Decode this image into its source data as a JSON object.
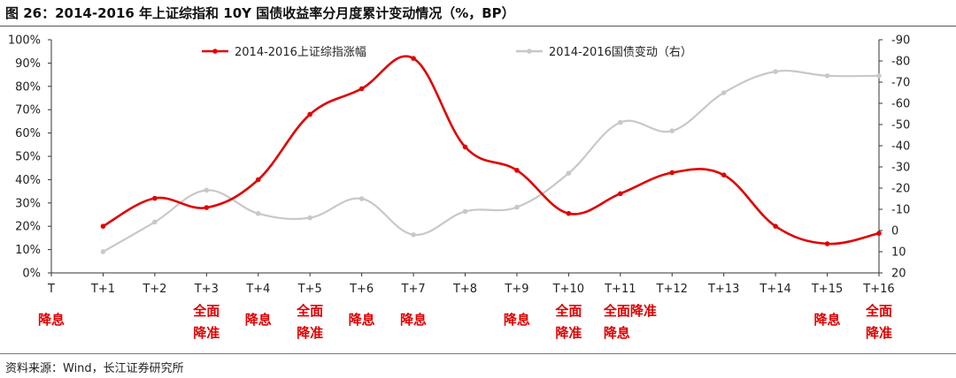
{
  "title": "图 26：2014-2016 年上证综指和 10Y 国债收益率分月度累计变动情况（%，BP）",
  "source": "资料来源：Wind，长江证券研究所",
  "chart_data": {
    "type": "line",
    "title": "图 26：2014-2016 年上证综指和 10Y 国债收益率分月度累计变动情况（%，BP）",
    "categories": [
      "T",
      "T+1",
      "T+2",
      "T+3",
      "T+4",
      "T+5",
      "T+6",
      "T+7",
      "T+8",
      "T+9",
      "T+10",
      "T+11",
      "T+12",
      "T+13",
      "T+14",
      "T+15",
      "T+16"
    ],
    "left_axis": {
      "ticks": [
        "0%",
        "10%",
        "20%",
        "30%",
        "40%",
        "50%",
        "60%",
        "70%",
        "80%",
        "90%",
        "100%"
      ],
      "ylim": [
        0,
        100
      ]
    },
    "right_axis": {
      "ticks": [
        "20",
        "10",
        "0",
        "-10",
        "-20",
        "-30",
        "-40",
        "-50",
        "-60",
        "-70",
        "-80",
        "-90"
      ],
      "ylim": [
        20,
        -90
      ],
      "inverted": true
    },
    "series": [
      {
        "name": "2014-2016上证综指涨幅",
        "axis": "left",
        "color": "#e00000",
        "values": [
          null,
          20,
          32,
          28,
          40,
          68,
          79,
          92,
          54,
          44,
          25.5,
          34,
          43,
          42,
          20,
          12.5,
          17
        ]
      },
      {
        "name": "2014-2016国债变动（右）",
        "axis": "right",
        "color": "#c8c8c8",
        "values": [
          null,
          10,
          -4,
          -19,
          -8,
          -6,
          -15,
          2,
          -9,
          -11,
          -27,
          -51,
          -47,
          -65,
          -75,
          -73,
          -73
        ]
      }
    ],
    "annotations": [
      {
        "category": "T",
        "lines": [
          "降息"
        ]
      },
      {
        "category": "T+3",
        "lines": [
          "全面",
          "降准"
        ]
      },
      {
        "category": "T+4",
        "lines": [
          "降息"
        ]
      },
      {
        "category": "T+5",
        "lines": [
          "全面",
          "降准"
        ]
      },
      {
        "category": "T+6",
        "lines": [
          "降息"
        ]
      },
      {
        "category": "T+7",
        "lines": [
          "降息"
        ]
      },
      {
        "category": "T+9",
        "lines": [
          "降息"
        ]
      },
      {
        "category": "T+10",
        "lines": [
          "全面",
          "降准"
        ]
      },
      {
        "category": "T+11",
        "lines": [
          "全面降准",
          "降息"
        ]
      },
      {
        "category": "T+15",
        "lines": [
          "降息"
        ]
      },
      {
        "category": "T+16",
        "lines": [
          "全面",
          "降准"
        ]
      }
    ],
    "legend_position": "top-center",
    "grid": false
  }
}
